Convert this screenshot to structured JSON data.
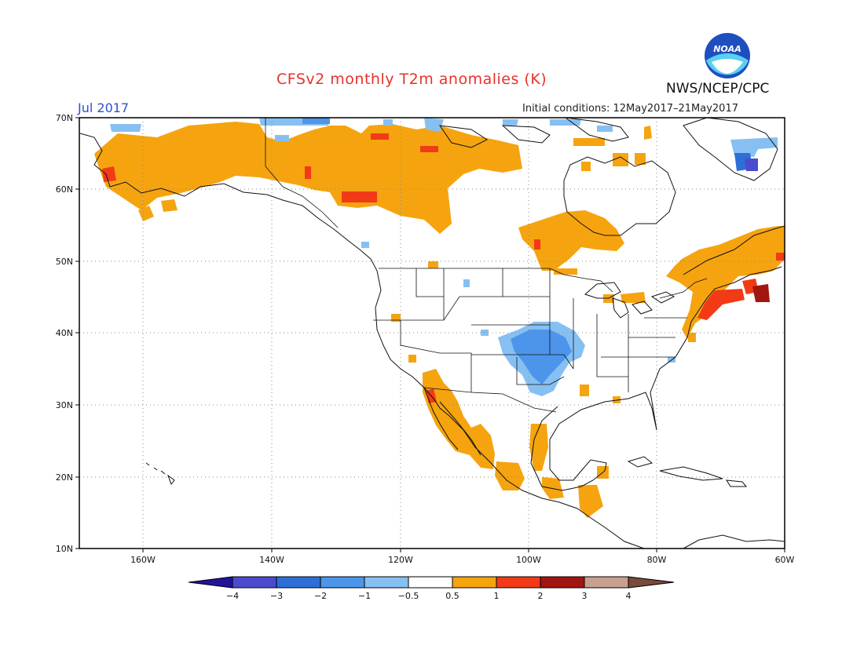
{
  "header": {
    "title": "CFSv2 monthly T2m anomalies (K)",
    "month": "Jul 2017",
    "initial_conditions": "Initial conditions: 12May2017–21May2017",
    "org": "NWS/NCEP/CPC",
    "logo_text": "NOAA"
  },
  "map": {
    "lat_ticks": [
      "70N",
      "60N",
      "50N",
      "40N",
      "30N",
      "20N",
      "10N"
    ],
    "lon_ticks": [
      "160W",
      "140W",
      "120W",
      "100W",
      "80W",
      "60W"
    ]
  },
  "colorbar": {
    "labels": [
      "−4",
      "−3",
      "−2",
      "−1",
      "−0.5",
      "0.5",
      "1",
      "2",
      "3",
      "4"
    ],
    "colors": [
      "#22149a",
      "#4b4bd0",
      "#2d6fd6",
      "#4c95ea",
      "#86c0f2",
      "#ffffff",
      "#f5a40f",
      "#f23a17",
      "#a3150f",
      "#c8a08e",
      "#7a4a3a"
    ]
  },
  "colors": {
    "warm_1": "#f5a40f",
    "warm_2": "#f23a17",
    "warm_3": "#a3150f",
    "cool_05": "#86c0f2",
    "cool_1": "#4c95ea",
    "cool_2": "#2d6fd6",
    "cool_3": "#4b4bd0"
  }
}
